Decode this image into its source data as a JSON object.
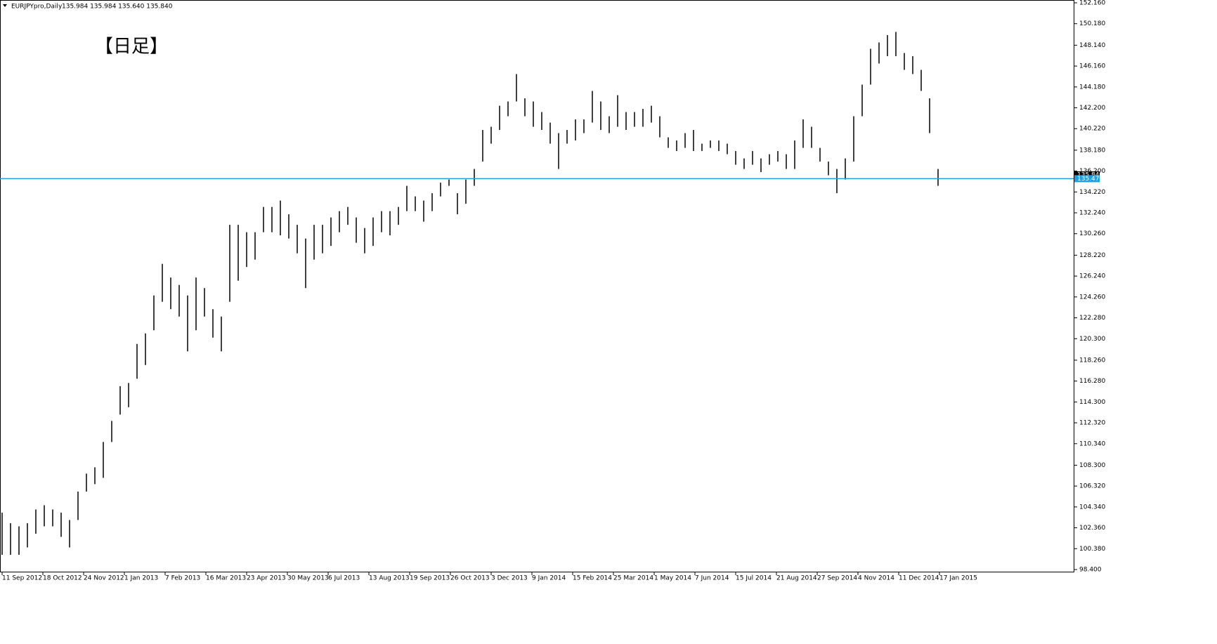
{
  "chart_data": {
    "type": "ohlc",
    "title": "EURJPYpro,Daily",
    "subtitle": "135.984 135.984 135.640 135.840",
    "annotation": "【日足】",
    "color": "#000000",
    "x": [
      0,
      6,
      12,
      18,
      24,
      30,
      36,
      42,
      48,
      54,
      60,
      66,
      72,
      78,
      84,
      90,
      96,
      102,
      108,
      114,
      120,
      126,
      132,
      138,
      144,
      150,
      156,
      162,
      168,
      174,
      180,
      186,
      192,
      198,
      204,
      210,
      216,
      222,
      228,
      234,
      240,
      246,
      252,
      258,
      264,
      270,
      276,
      282,
      288,
      294,
      300,
      306,
      312,
      318,
      324,
      330,
      336,
      342,
      348,
      354,
      360,
      366,
      372,
      378,
      384,
      390,
      396,
      402,
      408,
      414,
      420,
      426,
      432,
      438,
      444,
      450,
      456,
      462,
      468,
      474,
      480,
      486,
      492,
      498,
      504,
      510,
      516,
      522,
      528,
      534,
      540,
      546,
      552,
      558,
      564,
      570,
      576,
      582,
      588,
      594,
      600,
      606,
      612,
      618,
      624,
      630,
      636,
      642,
      648,
      654,
      660,
      666
    ],
    "high": [
      103.8,
      102.8,
      102.5,
      102.8,
      104.1,
      104.5,
      104.1,
      103.8,
      103.1,
      105.8,
      107.5,
      108.1,
      110.5,
      112.5,
      115.8,
      116.1,
      119.8,
      120.8,
      124.4,
      127.4,
      126.1,
      125.4,
      124.4,
      126.1,
      125.1,
      123.1,
      122.4,
      131.1,
      131.1,
      130.4,
      130.4,
      132.8,
      132.8,
      133.4,
      132.1,
      131.1,
      129.8,
      131.1,
      131.1,
      131.8,
      132.4,
      132.8,
      131.8,
      130.8,
      131.8,
      132.4,
      132.4,
      132.8,
      134.8,
      133.8,
      133.4,
      134.1,
      135.1,
      135.4,
      134.1,
      135.4,
      136.4,
      140.1,
      140.4,
      142.4,
      142.8,
      145.4,
      143.1,
      142.8,
      141.8,
      140.8,
      139.8,
      140.1,
      141.1,
      141.1,
      143.8,
      142.8,
      141.4,
      143.4,
      141.8,
      141.8,
      142.1,
      142.4,
      141.4,
      139.4,
      139.1,
      139.8,
      140.1,
      138.8,
      139.1,
      139.1,
      138.8,
      138.1,
      137.4,
      138.1,
      137.4,
      137.8,
      138.1,
      137.8,
      139.1,
      141.1,
      140.4,
      138.4,
      137.1,
      136.4,
      137.4,
      141.4,
      144.4,
      147.8,
      148.4,
      149.1,
      149.4,
      147.4,
      147.1,
      145.8,
      143.1,
      136.4
    ],
    "low": [
      99.8,
      99.8,
      99.8,
      100.5,
      101.8,
      102.5,
      102.5,
      101.5,
      100.5,
      103.1,
      105.8,
      106.5,
      107.1,
      110.5,
      113.1,
      113.8,
      116.5,
      117.8,
      121.1,
      123.8,
      123.1,
      122.4,
      119.1,
      121.1,
      122.4,
      120.4,
      119.1,
      123.8,
      125.8,
      127.1,
      127.8,
      130.4,
      130.4,
      130.1,
      129.8,
      128.4,
      125.1,
      127.8,
      128.4,
      129.1,
      130.4,
      131.1,
      129.4,
      128.4,
      129.1,
      130.4,
      130.1,
      131.1,
      132.4,
      132.4,
      131.4,
      132.4,
      133.8,
      134.8,
      132.1,
      133.1,
      134.8,
      137.1,
      138.8,
      140.1,
      141.4,
      142.8,
      141.4,
      140.4,
      140.1,
      138.8,
      136.4,
      138.8,
      139.1,
      139.8,
      140.8,
      140.1,
      139.8,
      140.4,
      140.1,
      140.4,
      140.4,
      140.8,
      139.4,
      138.4,
      138.1,
      138.4,
      138.1,
      138.1,
      138.4,
      138.1,
      137.8,
      136.8,
      136.4,
      136.8,
      136.1,
      136.8,
      137.1,
      136.4,
      136.4,
      138.4,
      138.4,
      137.1,
      135.8,
      134.1,
      135.4,
      137.1,
      141.4,
      144.4,
      146.4,
      147.1,
      147.1,
      145.8,
      145.4,
      143.8,
      139.8,
      134.8
    ],
    "xlim": [
      -1.5,
      762.5
    ],
    "xticks": [
      {
        "value": 0,
        "label": "11 Sep 2012"
      },
      {
        "value": 29,
        "label": "18 Oct 2012"
      },
      {
        "value": 58,
        "label": "24 Nov 2012"
      },
      {
        "value": 87,
        "label": "1 Jan 2013"
      },
      {
        "value": 116,
        "label": "7 Feb 2013"
      },
      {
        "value": 145,
        "label": "16 Mar 2013"
      },
      {
        "value": 174,
        "label": "23 Apr 2013"
      },
      {
        "value": 203,
        "label": "30 May 2013"
      },
      {
        "value": 232,
        "label": "6 Jul 2013"
      },
      {
        "value": 261,
        "label": "13 Aug 2013"
      },
      {
        "value": 290,
        "label": "19 Sep 2013"
      },
      {
        "value": 319,
        "label": "26 Oct 2013"
      },
      {
        "value": 348,
        "label": "3 Dec 2013"
      },
      {
        "value": 377,
        "label": "9 Jan 2014"
      },
      {
        "value": 406,
        "label": "15 Feb 2014"
      },
      {
        "value": 435,
        "label": "25 Mar 2014"
      },
      {
        "value": 464,
        "label": "1 May 2014"
      },
      {
        "value": 493,
        "label": "7 Jun 2014"
      },
      {
        "value": 522,
        "label": "15 Jul 2014"
      },
      {
        "value": 551,
        "label": "21 Aug 2014"
      },
      {
        "value": 580,
        "label": "27 Sep 2014"
      },
      {
        "value": 609,
        "label": "4 Nov 2014"
      },
      {
        "value": 638,
        "label": "11 Dec 2014"
      },
      {
        "value": 667,
        "label": "17 Jan 2015"
      }
    ],
    "ylim": [
      98.4,
      152.16
    ],
    "yticks": [
      {
        "value": 152.16,
        "label": "152.160"
      },
      {
        "value": 150.18,
        "label": "150.180"
      },
      {
        "value": 148.14,
        "label": "148.140"
      },
      {
        "value": 146.16,
        "label": "146.160"
      },
      {
        "value": 144.18,
        "label": "144.180"
      },
      {
        "value": 142.2,
        "label": "142.200"
      },
      {
        "value": 140.22,
        "label": "140.220"
      },
      {
        "value": 138.18,
        "label": "138.180"
      },
      {
        "value": 136.2,
        "label": "136.200"
      },
      {
        "value": 134.22,
        "label": "134.220"
      },
      {
        "value": 132.24,
        "label": "132.240"
      },
      {
        "value": 130.26,
        "label": "130.260"
      },
      {
        "value": 128.22,
        "label": "128.220"
      },
      {
        "value": 126.24,
        "label": "126.240"
      },
      {
        "value": 124.26,
        "label": "124.260"
      },
      {
        "value": 122.28,
        "label": "122.280"
      },
      {
        "value": 120.3,
        "label": "120.300"
      },
      {
        "value": 118.26,
        "label": "118.260"
      },
      {
        "value": 116.28,
        "label": "116.280"
      },
      {
        "value": 114.3,
        "label": "114.300"
      },
      {
        "value": 112.32,
        "label": "112.320"
      },
      {
        "value": 110.34,
        "label": "110.340"
      },
      {
        "value": 108.3,
        "label": "108.300"
      },
      {
        "value": 106.32,
        "label": "106.320"
      },
      {
        "value": 104.34,
        "label": "104.340"
      },
      {
        "value": 102.36,
        "label": "102.360"
      },
      {
        "value": 100.38,
        "label": "100.380"
      },
      {
        "value": 98.4,
        "label": "98.400"
      }
    ],
    "hline": {
      "value": 135.479,
      "color": "#1ea0e6"
    },
    "price_marker": {
      "value": 135.84,
      "label": "135.840"
    }
  }
}
